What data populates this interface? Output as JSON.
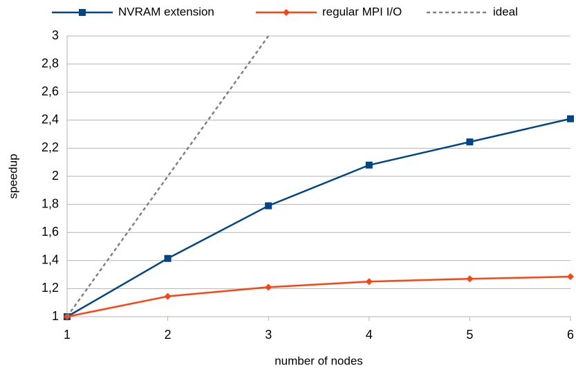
{
  "chart_data": {
    "type": "line",
    "xlabel": "number of nodes",
    "ylabel": "speedup",
    "x": [
      1,
      2,
      3,
      4,
      5,
      6
    ],
    "series": [
      {
        "name": "NVRAM extension",
        "color": "#004586",
        "marker": "square",
        "values": [
          1,
          1.415,
          1.79,
          2.08,
          2.245,
          2.41
        ]
      },
      {
        "name": "regular MPI I/O",
        "color": "#ff420e",
        "marker": "diamond",
        "values": [
          1,
          1.145,
          1.21,
          1.25,
          1.27,
          1.285
        ]
      },
      {
        "name": "ideal",
        "color": "#808080",
        "dashed": true,
        "values": [
          1,
          2,
          3,
          null,
          null,
          null
        ]
      }
    ],
    "xlim": [
      1,
      6
    ],
    "xticks": [
      1,
      2,
      3,
      4,
      5,
      6
    ],
    "ylim": [
      1,
      3
    ],
    "yticks": [
      1,
      {
        "value": 1.2,
        "label": "1,2"
      },
      {
        "value": 1.4,
        "label": "1,4"
      },
      {
        "value": 1.6,
        "label": "1,6"
      },
      {
        "value": 1.8,
        "label": "1,8"
      },
      2,
      {
        "value": 2.2,
        "label": "2,2"
      },
      {
        "value": 2.4,
        "label": "2,4"
      },
      {
        "value": 2.6,
        "label": "2,6"
      },
      {
        "value": 2.8,
        "label": "2,8"
      },
      3
    ],
    "grid": true,
    "legend": "top"
  }
}
